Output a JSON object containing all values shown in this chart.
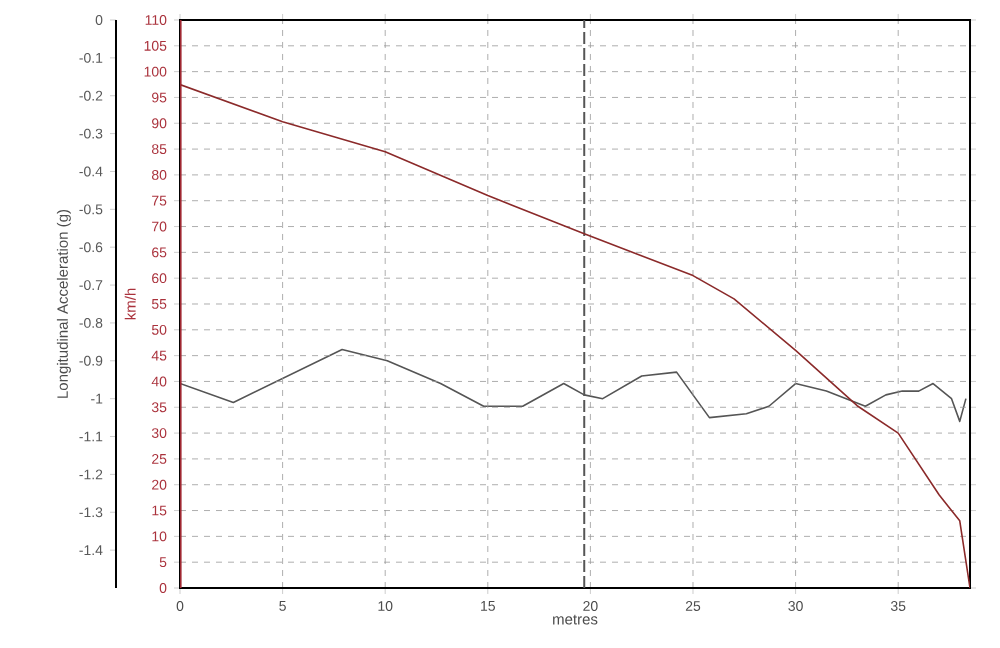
{
  "chart_data": {
    "type": "line",
    "xlabel": "metres",
    "ylabel": "km/h",
    "y2label": "Longitudinal Acceleration (g)",
    "xlim": [
      0,
      38.5
    ],
    "xticks": [
      0,
      5,
      10,
      15,
      20,
      25,
      30,
      35
    ],
    "ylim": [
      0,
      110
    ],
    "yticks": [
      0,
      5,
      10,
      15,
      20,
      25,
      30,
      35,
      40,
      45,
      50,
      55,
      60,
      65,
      70,
      75,
      80,
      85,
      90,
      95,
      100,
      105,
      110
    ],
    "y2lim": [
      -1.5,
      0
    ],
    "y2ticks": [
      0,
      -0.1,
      -0.2,
      -0.3,
      -0.4,
      -0.5,
      -0.6,
      -0.7,
      -0.8,
      -0.9,
      -1,
      -1.1,
      -1.2,
      -1.3,
      -1.4
    ],
    "grid": true,
    "marker": "none",
    "series": [
      {
        "color": "#8b2a2a",
        "x": [
          0,
          5,
          10,
          15,
          19.7,
          25,
          27,
          30,
          33,
          35,
          37,
          38,
          38.5
        ],
        "values": [
          97.5,
          90.3,
          84.5,
          76,
          68.6,
          60.5,
          56,
          46,
          35.3,
          30,
          18,
          13,
          0
        ]
      },
      {
        "color": "#555555",
        "axis": "y2",
        "x": [
          0,
          2.6,
          7.9,
          10.1,
          12.7,
          14.8,
          16.7,
          18.7,
          19.7,
          20.6,
          22.5,
          24.2,
          25.8,
          27.6,
          28.7,
          30,
          31.5,
          33.4,
          34.4,
          35.2,
          36,
          36.7,
          37.6,
          38,
          38.3
        ],
        "values": [
          -0.96,
          -1.01,
          -0.87,
          -0.9,
          -0.96,
          -1.02,
          -1.02,
          -0.96,
          -0.99,
          -1,
          -0.94,
          -0.93,
          -1.05,
          -1.04,
          -1.02,
          -0.96,
          -0.98,
          -1.02,
          -0.99,
          -0.98,
          -0.98,
          -0.96,
          -1,
          -1.06,
          -1
        ]
      }
    ],
    "ref_lines": [
      {
        "axis": "x",
        "value": 19.7,
        "color": "#555555",
        "line_style": "dashed"
      }
    ]
  }
}
